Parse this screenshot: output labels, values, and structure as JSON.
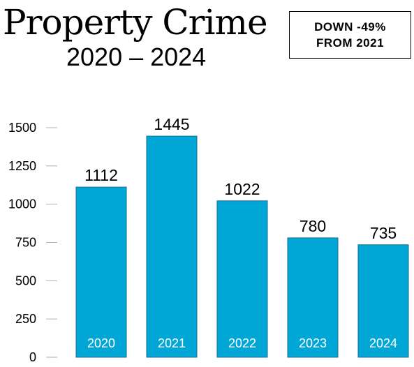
{
  "header": {
    "title": "Property Crime",
    "subtitle": "2020 – 2024"
  },
  "callout": {
    "line1": "DOWN -49%",
    "line2": "FROM 2021"
  },
  "colors": {
    "bar_fill": "#00a7d6",
    "bar_stroke": "#1b6f8e",
    "tick_mark": "#b0b0b0"
  },
  "chart_data": {
    "type": "bar",
    "categories": [
      "2020",
      "2021",
      "2022",
      "2023",
      "2024"
    ],
    "values": [
      1112,
      1445,
      1022,
      780,
      735
    ],
    "title": "Property Crime",
    "subtitle": "2020 – 2024",
    "xlabel": "",
    "ylabel": "",
    "ylim": [
      0,
      1500
    ],
    "yticks": [
      0,
      250,
      500,
      750,
      1000,
      1250,
      1500
    ],
    "grid": false,
    "legend": "none",
    "annotation": "DOWN -49% FROM 2021"
  }
}
